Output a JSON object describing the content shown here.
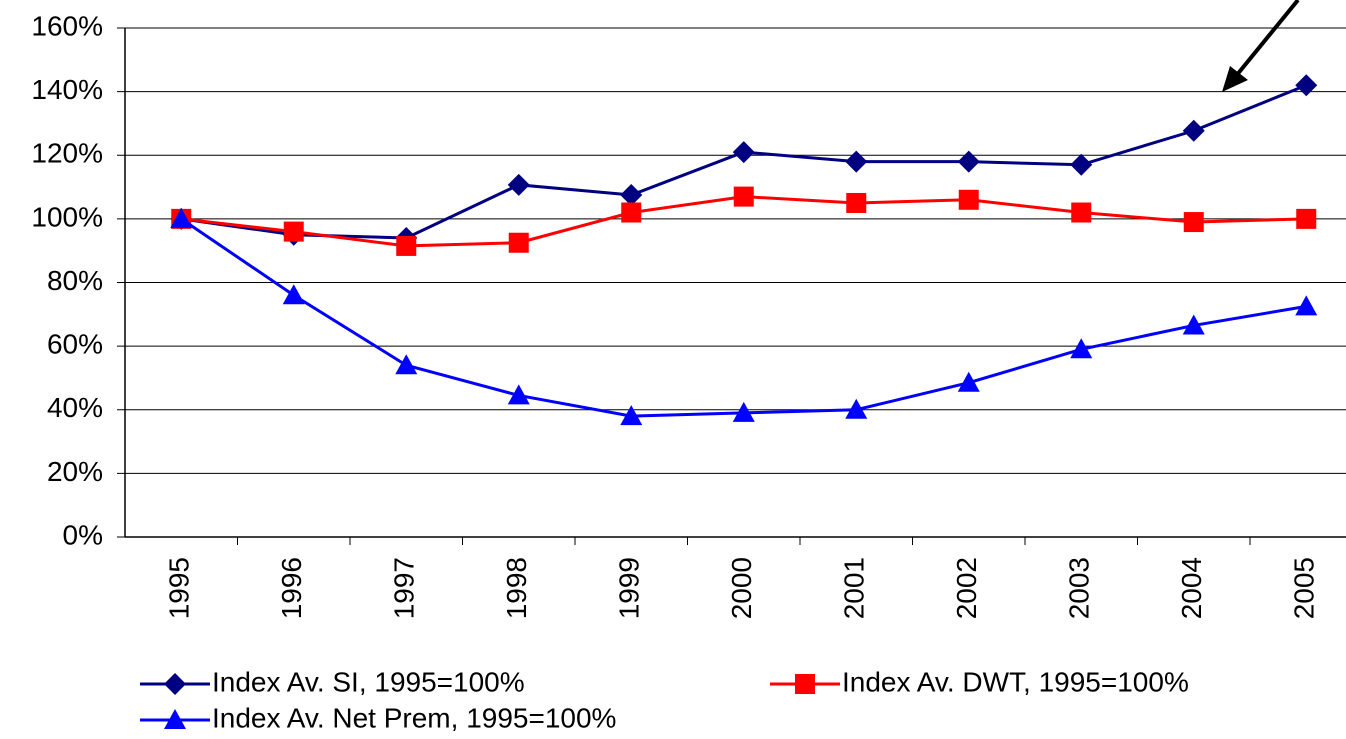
{
  "chart_data": {
    "type": "line",
    "categories": [
      "1995",
      "1996",
      "1997",
      "1998",
      "1999",
      "2000",
      "2001",
      "2002",
      "2003",
      "2004",
      "2005"
    ],
    "series": [
      {
        "name": "Index Av. SI, 1995=100%",
        "color": "#000080",
        "marker": "diamond",
        "values": [
          100,
          95,
          94,
          110.7,
          107.5,
          121,
          118,
          118,
          117,
          127.7,
          142
        ]
      },
      {
        "name": "Index Av. DWT, 1995=100%",
        "color": "#ff0000",
        "marker": "square",
        "values": [
          100,
          96,
          91.5,
          92.5,
          102,
          107,
          105,
          106,
          102,
          99,
          100
        ]
      },
      {
        "name": "Index Av. Net Prem, 1995=100%",
        "color": "#0000ff",
        "marker": "triangle",
        "values": [
          100,
          76,
          54,
          44.5,
          38,
          39,
          40,
          48.5,
          59,
          66.5,
          72.5
        ]
      }
    ],
    "ylim": [
      0,
      160
    ],
    "yticks": [
      {
        "value": 0,
        "label": "0%"
      },
      {
        "value": 20,
        "label": "20%"
      },
      {
        "value": 40,
        "label": "40%"
      },
      {
        "value": 60,
        "label": "60%"
      },
      {
        "value": 80,
        "label": "80%"
      },
      {
        "value": 100,
        "label": "100%"
      },
      {
        "value": 120,
        "label": "120%"
      },
      {
        "value": 140,
        "label": "140%"
      },
      {
        "value": 160,
        "label": "160%"
      }
    ],
    "grid": true
  }
}
